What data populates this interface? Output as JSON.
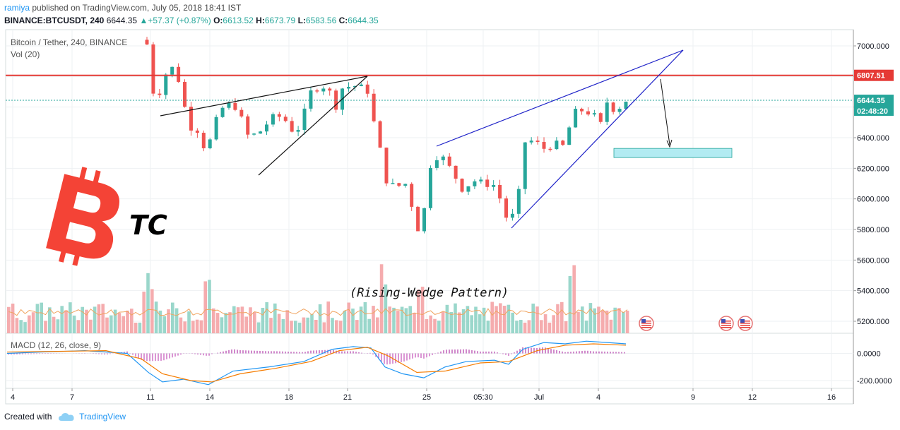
{
  "header": {
    "user": "ramiya",
    "published": "published on TradingView.com, July 05, 2018 18:41 IST",
    "symbol": "BINANCE:BTCUSDT, 240",
    "last": "6644.35",
    "change": "+57.37 (+0.87%)",
    "o_label": "O:",
    "o": "6613.52",
    "h_label": "H:",
    "h": "6673.79",
    "l_label": "L:",
    "l": "6583.56",
    "c_label": "C:",
    "c": "6644.35"
  },
  "legend": {
    "title": "Bitcoin / Tether, 240, BINANCE",
    "vol": "Vol (20)",
    "macd": "MACD (12, 26, close, 9)"
  },
  "logo": {
    "text": "TC",
    "color": "#f44336"
  },
  "annotation": "(Rising-Wedge Pattern)",
  "price_labels": {
    "resistance": "6807.51",
    "last": "6644.35",
    "countdown": "02:48:20"
  },
  "footer": {
    "created_with": "Created with",
    "brand": "TradingView"
  },
  "chart_data": {
    "type": "candlestick",
    "x_ticks": [
      "4",
      "7",
      "11",
      "14",
      "18",
      "21",
      "25",
      "05:30",
      "Jul",
      "4",
      "9",
      "12",
      "16"
    ],
    "price_ticks": [
      "7000.000",
      "6800.000",
      "6600.000",
      "6400.000",
      "6200.000",
      "6000.000",
      "5800.000",
      "5600.000",
      "5400.000",
      "5200.000"
    ],
    "macd_ticks": [
      "0.0000",
      "-200.0000"
    ],
    "ylim": [
      5130,
      7100
    ],
    "macd_ylim": [
      -240,
      130
    ],
    "resistance_level": 6807.51,
    "last_price": 6644.35,
    "target_zone": [
      6270,
      6330
    ],
    "colors": {
      "up": "#26a69a",
      "down": "#ef5350",
      "resistance": "#e53935",
      "wedge": "#1e22c8",
      "zone": "#b2ebf2"
    }
  }
}
